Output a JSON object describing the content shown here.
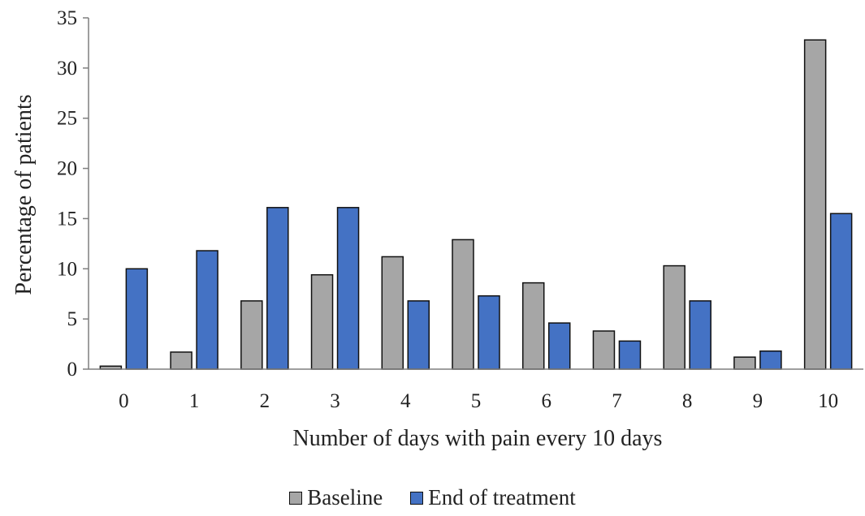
{
  "chart_data": {
    "type": "bar",
    "title": "",
    "xlabel": "Number of days with pain every 10 days",
    "ylabel": "Percentage of patients",
    "categories": [
      "0",
      "1",
      "2",
      "3",
      "4",
      "5",
      "6",
      "7",
      "8",
      "9",
      "10"
    ],
    "ylim": [
      0,
      35
    ],
    "yticks": [
      "0",
      "5",
      "10",
      "15",
      "20",
      "25",
      "30",
      "35"
    ],
    "grid": false,
    "legend_position": "bottom",
    "series": [
      {
        "name": "Baseline",
        "color": "#a6a6a6",
        "values": [
          0.3,
          1.7,
          6.8,
          9.4,
          11.2,
          12.9,
          8.6,
          3.8,
          10.3,
          1.2,
          32.8
        ]
      },
      {
        "name": "End of treatment",
        "color": "#4472c4",
        "values": [
          10.0,
          11.8,
          16.1,
          16.1,
          6.8,
          7.3,
          4.6,
          2.8,
          6.8,
          1.8,
          15.5
        ]
      }
    ]
  }
}
